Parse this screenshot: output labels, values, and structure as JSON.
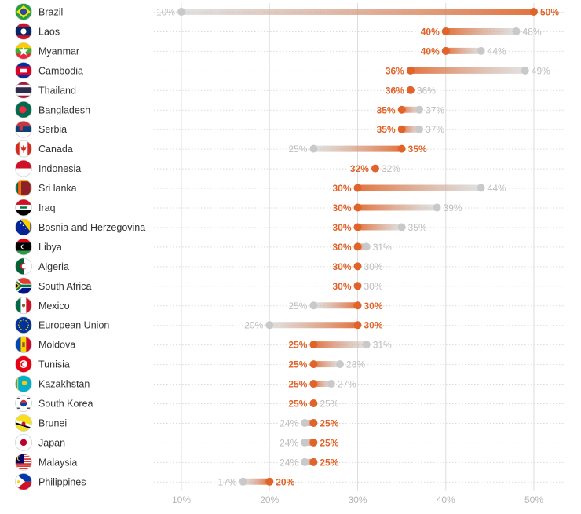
{
  "chart_data": {
    "type": "dumbbell",
    "unit": "%",
    "xlim": [
      10,
      50
    ],
    "x_ticks": [
      "10%",
      "20%",
      "30%",
      "40%",
      "50%"
    ],
    "grid": "vertical",
    "colors": {
      "new": "#e0642a",
      "old": "#c9c9c9",
      "grid": "#dddddd",
      "row_line": "#d9d9d9",
      "text": "#333333"
    },
    "rows": [
      {
        "country": "Brazil",
        "flag": "brazil-flag-icon",
        "old": 10,
        "new": 50,
        "old_label": "10%",
        "new_label": "50%"
      },
      {
        "country": "Laos",
        "flag": "laos-flag-icon",
        "old": 48,
        "new": 40,
        "old_label": "48%",
        "new_label": "40%"
      },
      {
        "country": "Myanmar",
        "flag": "myanmar-flag-icon",
        "old": 44,
        "new": 40,
        "old_label": "44%",
        "new_label": "40%"
      },
      {
        "country": "Cambodia",
        "flag": "cambodia-flag-icon",
        "old": 49,
        "new": 36,
        "old_label": "49%",
        "new_label": "36%"
      },
      {
        "country": "Thailand",
        "flag": "thailand-flag-icon",
        "old": 36,
        "new": 36,
        "old_label": "36%",
        "new_label": "36%"
      },
      {
        "country": "Bangladesh",
        "flag": "bangladesh-flag-icon",
        "old": 37,
        "new": 35,
        "old_label": "37%",
        "new_label": "35%"
      },
      {
        "country": "Serbia",
        "flag": "serbia-flag-icon",
        "old": 37,
        "new": 35,
        "old_label": "37%",
        "new_label": "35%"
      },
      {
        "country": "Canada",
        "flag": "canada-flag-icon",
        "old": 25,
        "new": 35,
        "old_label": "25%",
        "new_label": "35%"
      },
      {
        "country": "Indonesia",
        "flag": "indonesia-flag-icon",
        "old": 32,
        "new": 32,
        "old_label": "32%",
        "new_label": "32%"
      },
      {
        "country": "Sri lanka",
        "flag": "sri-lanka-flag-icon",
        "old": 44,
        "new": 30,
        "old_label": "44%",
        "new_label": "30%"
      },
      {
        "country": "Iraq",
        "flag": "iraq-flag-icon",
        "old": 39,
        "new": 30,
        "old_label": "39%",
        "new_label": "30%"
      },
      {
        "country": "Bosnia and Herzegovina",
        "flag": "bosnia-flag-icon",
        "old": 35,
        "new": 30,
        "old_label": "35%",
        "new_label": "30%"
      },
      {
        "country": "Libya",
        "flag": "libya-flag-icon",
        "old": 31,
        "new": 30,
        "old_label": "31%",
        "new_label": "30%"
      },
      {
        "country": "Algeria",
        "flag": "algeria-flag-icon",
        "old": 30,
        "new": 30,
        "old_label": "30%",
        "new_label": "30%"
      },
      {
        "country": "South Africa",
        "flag": "south-africa-flag-icon",
        "old": 30,
        "new": 30,
        "old_label": "30%",
        "new_label": "30%"
      },
      {
        "country": "Mexico",
        "flag": "mexico-flag-icon",
        "old": 25,
        "new": 30,
        "old_label": "25%",
        "new_label": "30%"
      },
      {
        "country": "European Union",
        "flag": "eu-flag-icon",
        "old": 20,
        "new": 30,
        "old_label": "20%",
        "new_label": "30%"
      },
      {
        "country": "Moldova",
        "flag": "moldova-flag-icon",
        "old": 31,
        "new": 25,
        "old_label": "31%",
        "new_label": "25%"
      },
      {
        "country": "Tunisia",
        "flag": "tunisia-flag-icon",
        "old": 28,
        "new": 25,
        "old_label": "28%",
        "new_label": "25%"
      },
      {
        "country": "Kazakhstan",
        "flag": "kazakhstan-flag-icon",
        "old": 27,
        "new": 25,
        "old_label": "27%",
        "new_label": "25%"
      },
      {
        "country": "South Korea",
        "flag": "south-korea-flag-icon",
        "old": 25,
        "new": 25,
        "old_label": "25%",
        "new_label": "25%"
      },
      {
        "country": "Brunei",
        "flag": "brunei-flag-icon",
        "old": 24,
        "new": 25,
        "old_label": "24%",
        "new_label": "25%"
      },
      {
        "country": "Japan",
        "flag": "japan-flag-icon",
        "old": 24,
        "new": 25,
        "old_label": "24%",
        "new_label": "25%"
      },
      {
        "country": "Malaysia",
        "flag": "malaysia-flag-icon",
        "old": 24,
        "new": 25,
        "old_label": "24%",
        "new_label": "25%"
      },
      {
        "country": "Philippines",
        "flag": "philippines-flag-icon",
        "old": 17,
        "new": 20,
        "old_label": "17%",
        "new_label": "20%"
      }
    ]
  }
}
